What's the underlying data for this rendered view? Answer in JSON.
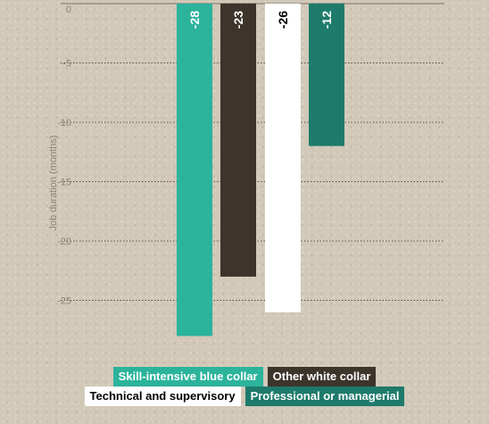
{
  "chart_data": {
    "type": "bar",
    "orientation": "vertical",
    "ylabel": "Job duration (months)",
    "ylim": [
      -27.5,
      0
    ],
    "yticks": [
      0,
      -5,
      -10,
      -15,
      -20,
      -25
    ],
    "grid": true,
    "legend_position": "bottom-center",
    "series": [
      {
        "name": "Skill-intensive blue collar",
        "value": -28,
        "label": "-28",
        "color": "#2cb39c",
        "text_color": "#ffffff"
      },
      {
        "name": "Other white collar",
        "value": -23,
        "label": "-23",
        "color": "#3d342b",
        "text_color": "#ffffff"
      },
      {
        "name": "Technical and supervisory",
        "value": -26,
        "label": "-26",
        "color": "#ffffff",
        "text_color": "#000000"
      },
      {
        "name": "Professional or managerial",
        "value": -12,
        "label": "-12",
        "color": "#1e7b6b",
        "text_color": "#ffffff"
      }
    ]
  }
}
